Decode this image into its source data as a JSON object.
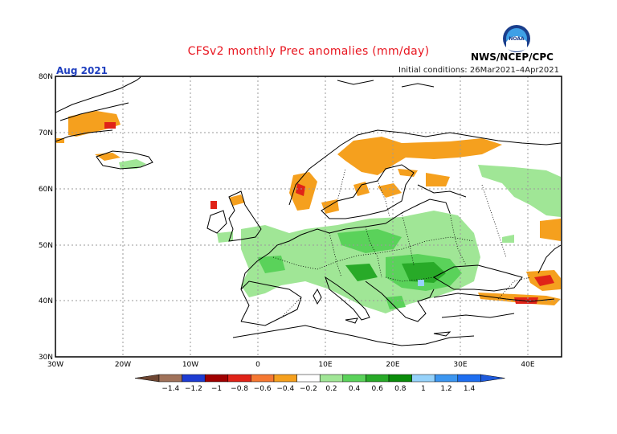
{
  "title": "CFSv2 monthly Prec anomalies (mm/day)",
  "month": "Aug 2021",
  "initial_conditions": "Initial conditions: 26Mar2021–4Apr2021",
  "agency": "NWS/NCEP/CPC",
  "logo_text": "NOAA",
  "lat_labels": [
    "80N",
    "70N",
    "60N",
    "50N",
    "40N",
    "30N"
  ],
  "lon_labels": [
    "30W",
    "20W",
    "10W",
    "0",
    "10E",
    "20E",
    "30E",
    "40E"
  ],
  "colorbar": {
    "labels": [
      "−1.4",
      "−1.2",
      "−1",
      "−0.8",
      "−0.6",
      "−0.4",
      "−0.2",
      "0.2",
      "0.4",
      "0.6",
      "0.8",
      "1",
      "1.2",
      "1.4"
    ],
    "colors": [
      "#a0725a",
      "#1e3cd2",
      "#a00000",
      "#e02318",
      "#f57832",
      "#f5a01e",
      "#ffffff",
      "#a0e696",
      "#5ad25a",
      "#28aa28",
      "#0a8c0a",
      "#96d2fa",
      "#3c96f0",
      "#1e6ef0"
    ],
    "low_arrow_color": "#6e4632",
    "high_arrow_color": "#1e5adc"
  },
  "colors": {
    "title": "#e8141e",
    "month": "#1f3fbf",
    "coast": "#000000",
    "grid": "#9a9a9a"
  }
}
